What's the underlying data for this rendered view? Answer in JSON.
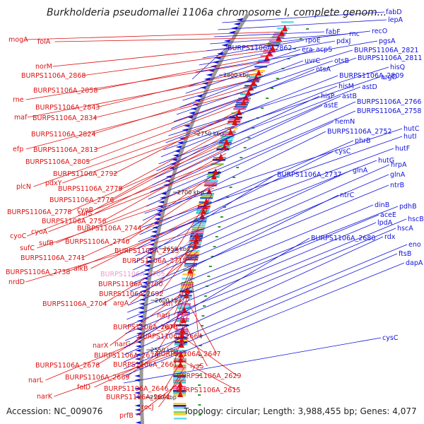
{
  "title": "Burkholderia pseudomallei 1106a chromosome I, complete genom...",
  "footer": {
    "accession": "Accession: NC_009076",
    "summary": "Topology: circular; Length: 3,988,455 bp; Genes: 4,077"
  },
  "kbp_labels": [
    "2800 kbp",
    "2750 kbp",
    "2700 kbp",
    "2650 kbp",
    "2600 kbp",
    "2550 kbp",
    "2500 kbp"
  ],
  "colors": {
    "forward": "#dd1111",
    "reverse": "#1111dd",
    "highlight": "#ee99cc",
    "backbone": "#999999"
  },
  "left_genes": [
    "mogA",
    "folA",
    "norM",
    "BURPS1106A_2868",
    "BURPS1106A_2858",
    "rne",
    "BURPS1106A_2843",
    "maf",
    "BURPS1106A_2834",
    "BURPS1106A_2824",
    "efp",
    "BURPS1106A_2813",
    "BURPS1106A_2805",
    "BURPS1106A_2792",
    "plcN",
    "pdxY",
    "BURPS1106A_2779",
    "BURPS1106A_2776",
    "cyoB",
    "BURPS1106A_2778",
    "sufS",
    "BURPS1106A_2756",
    "cyoC",
    "cyoA",
    "BURPS1106A_2744",
    "sufB",
    "BURPS1106A_2740",
    "sufC",
    "BURPS1106A_2725",
    "BURPS1106A_2741",
    "BURPS1106A_2715",
    "alkB",
    "BURPS1106A_2738",
    "BURPS1106A_2705",
    "nrdD",
    "BURPS1106A_2700",
    "BURPS1106A_2692",
    "BURPS1106A_2704",
    "argA",
    "xth",
    "narJ",
    "BURPS1106A_2676",
    "narI",
    "BURPS1106A_2664",
    "narX",
    "narG",
    "BURPS1106A_2670",
    "BURPS1106A_2647",
    "BURPS1106A_2678",
    "BURPS1106A_2661",
    "narL",
    "lysS",
    "BURPS1106A_2669",
    "BURPS1106A_2629",
    "folD",
    "narK",
    "BURPS1106A_2646",
    "BURPS1106A_2615",
    "BURPS1106A_2641",
    "recJ",
    "prfB"
  ],
  "right_genes": [
    "fabD",
    "lepA",
    "fabF",
    "rnc",
    "recO",
    "rpoE",
    "pdxJ",
    "pgsA",
    "BURPS1106A_2862",
    "era",
    "acpS",
    "BURPS1106A_2821",
    "uvrC",
    "otsB",
    "BURPS1106A_2811",
    "otsA",
    "hisQ",
    "BURPS1106A_2809",
    "argD",
    "hisM",
    "astD",
    "hisP",
    "astB",
    "astE",
    "BURPS1106A_2766",
    "BURPS1106A_2758",
    "hemN",
    "hutC",
    "BURPS1106A_2752",
    "hutI",
    "phrB",
    "hutF",
    "cysC",
    "hutG",
    "BURPS1106A_2737",
    "glnA",
    "hrpA",
    "glnA",
    "ntrB",
    "ntrC",
    "dinB",
    "pdhB",
    "aceE",
    "lpdA",
    "hscB",
    "hscA",
    "BURPS1106A_2680",
    "rdx",
    "eno",
    "ftsB",
    "dapA",
    "cysC"
  ]
}
